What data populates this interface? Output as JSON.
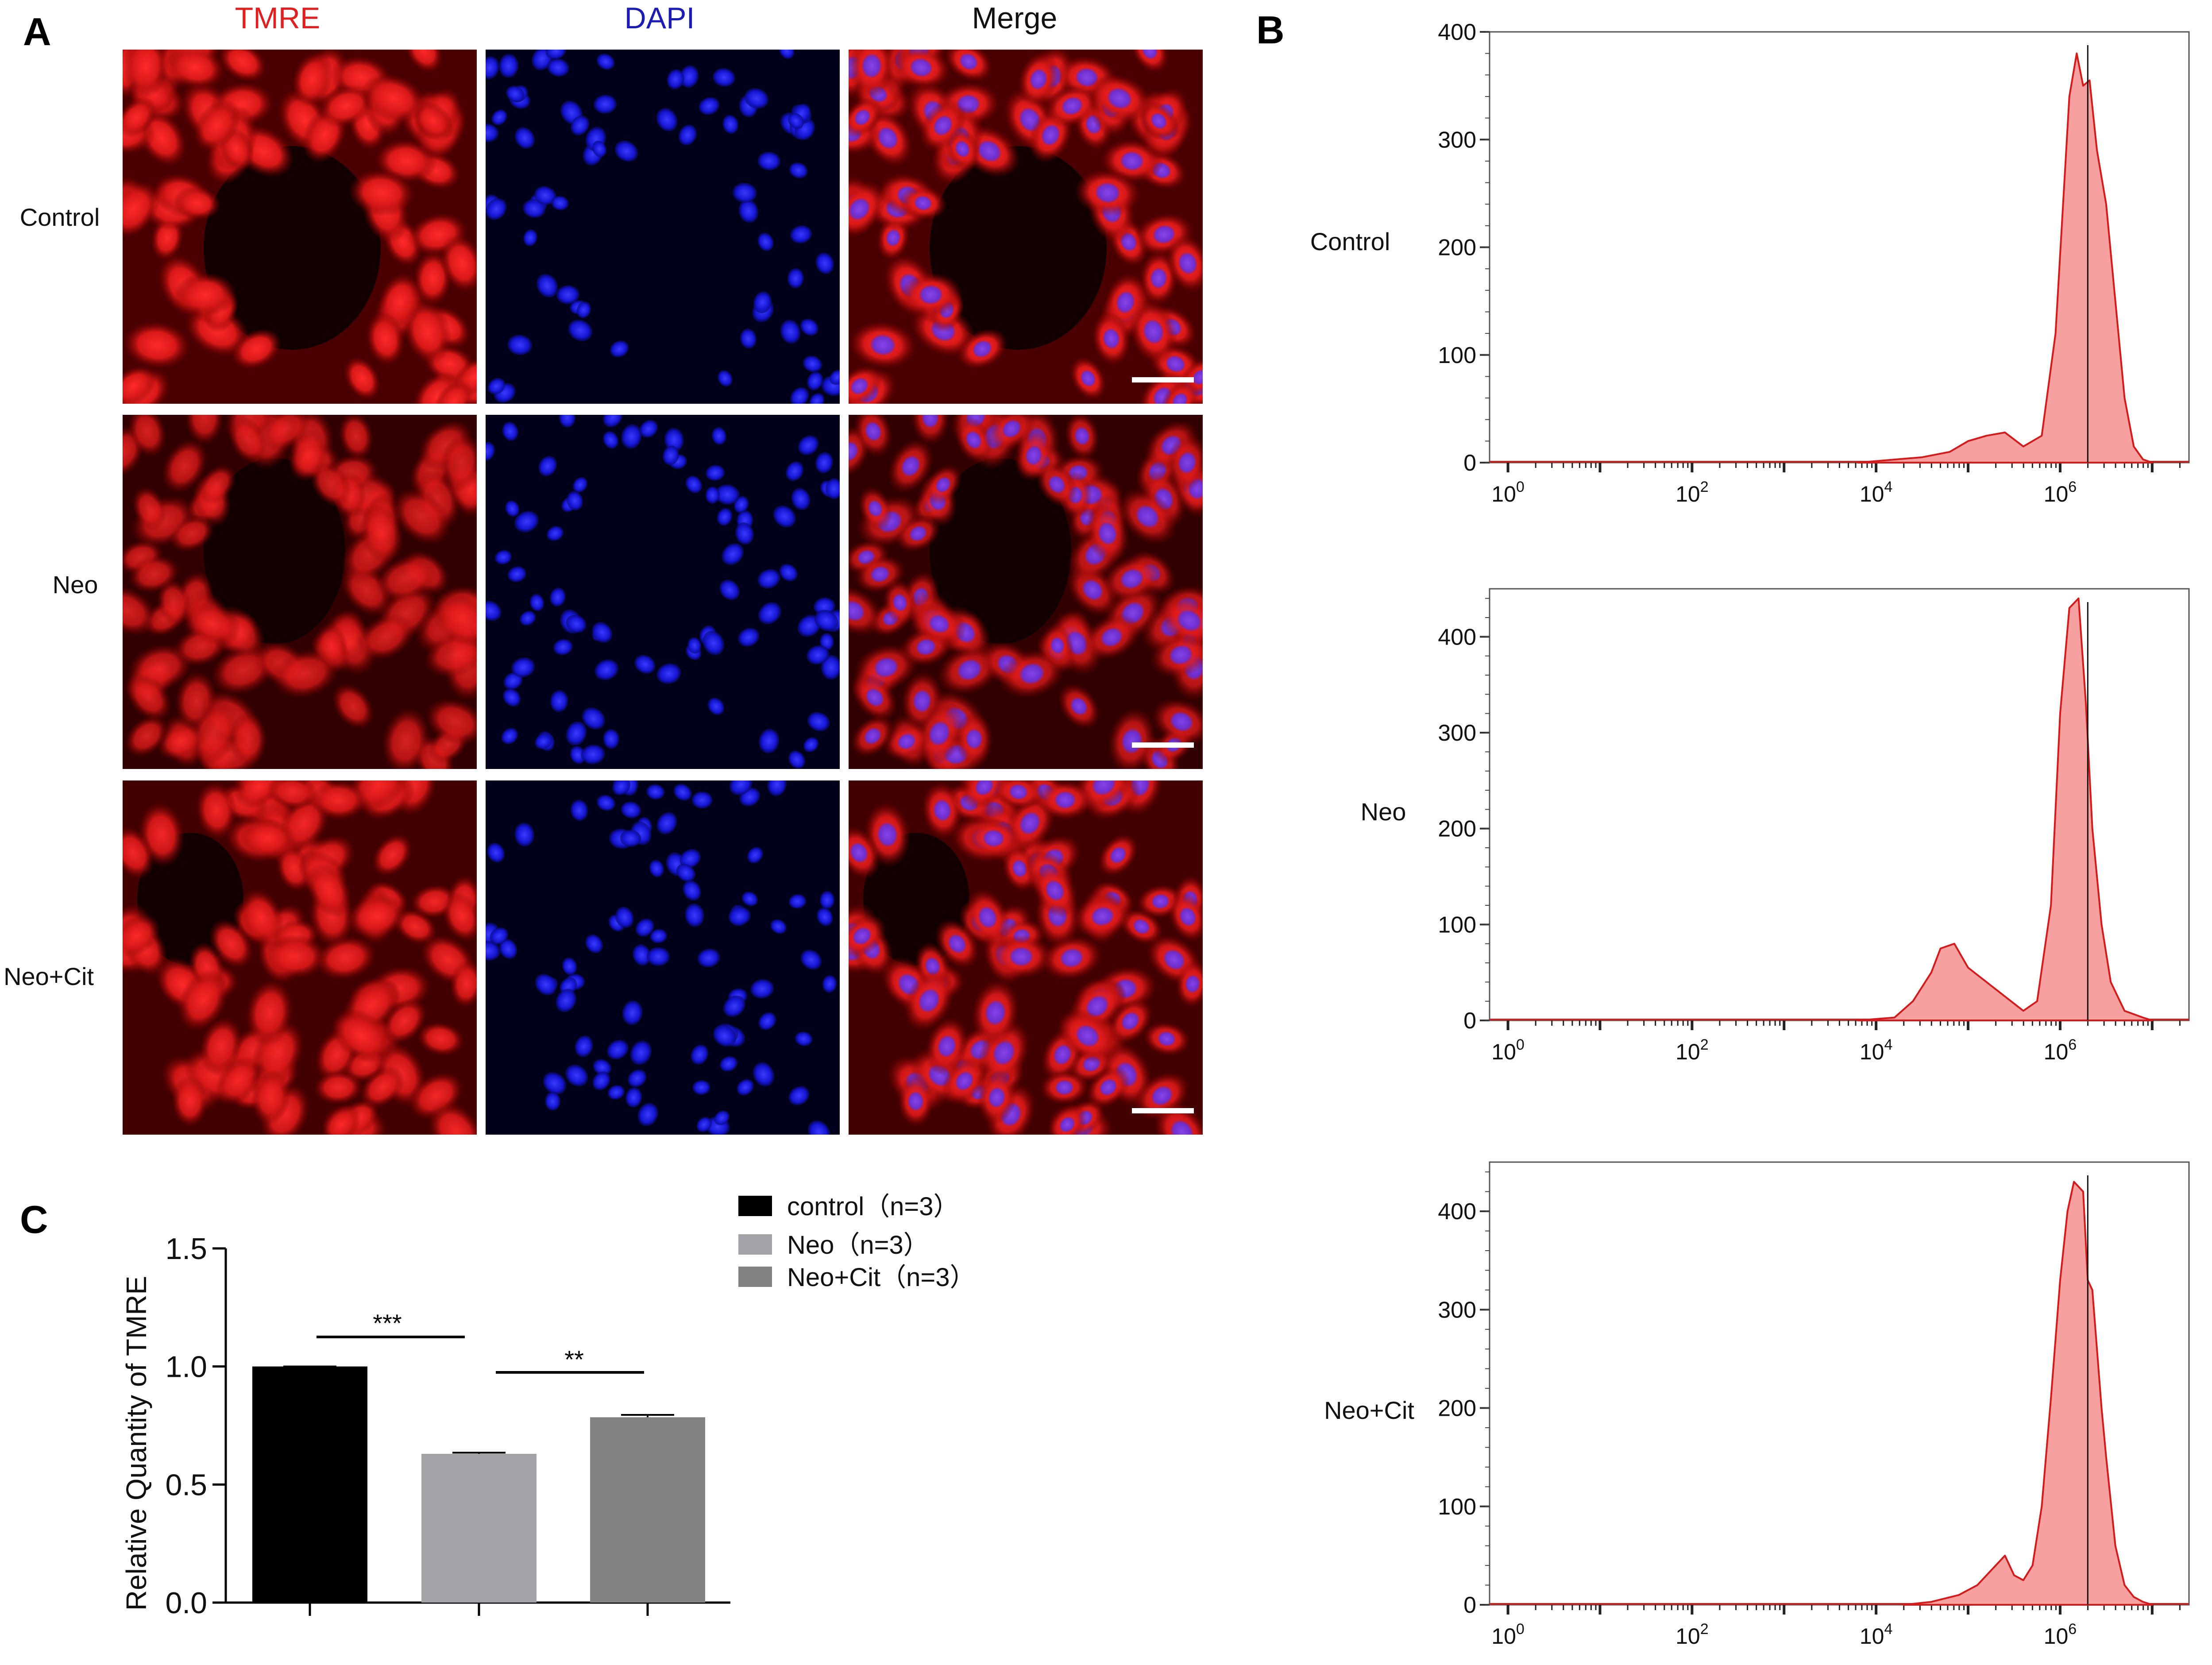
{
  "panel_a": {
    "letter": "A",
    "columns": [
      {
        "label": "TMRE",
        "color": "#e02020"
      },
      {
        "label": "DAPI",
        "color": "#1c1cb4"
      },
      {
        "label": "Merge",
        "color": "#111111"
      }
    ],
    "rows": [
      "Control",
      "Neo",
      "Neo+Cit"
    ],
    "tmre_intensity": [
      1.0,
      0.55,
      0.85
    ]
  },
  "panel_b": {
    "letter": "B",
    "row_labels": [
      "Control",
      "Neo",
      "Neo+Cit"
    ],
    "x_tick_labels": [
      {
        "base": "10",
        "exp": "0"
      },
      {
        "base": "10",
        "exp": "2"
      },
      {
        "base": "10",
        "exp": "4"
      },
      {
        "base": "10",
        "exp": "6"
      }
    ]
  },
  "panel_c": {
    "letter": "C",
    "significance": [
      "***",
      "**"
    ]
  },
  "chart_data": [
    {
      "type": "area",
      "name": "Control",
      "x_scale": "log",
      "x": [
        3.8,
        4.5,
        4.8,
        5.0,
        5.2,
        5.4,
        5.6,
        5.8,
        5.95,
        6.1,
        6.18,
        6.25,
        6.32,
        6.4,
        6.5,
        6.6,
        6.7,
        6.8,
        6.9,
        7.0
      ],
      "y": [
        0,
        5,
        10,
        20,
        25,
        28,
        15,
        25,
        120,
        340,
        380,
        350,
        355,
        290,
        240,
        150,
        60,
        15,
        3,
        0
      ],
      "xlim": [
        -0.2,
        7.4
      ],
      "ylim": [
        0,
        400
      ],
      "y_ticks": [
        0,
        100,
        200,
        300,
        400
      ],
      "marker_x": 6.3
    },
    {
      "type": "area",
      "name": "Neo",
      "x_scale": "log",
      "x": [
        3.8,
        4.2,
        4.4,
        4.6,
        4.7,
        4.85,
        5.0,
        5.2,
        5.4,
        5.6,
        5.75,
        5.9,
        6.0,
        6.1,
        6.2,
        6.28,
        6.35,
        6.45,
        6.55,
        6.7,
        6.9,
        7.0
      ],
      "y": [
        0,
        3,
        20,
        50,
        75,
        80,
        55,
        40,
        25,
        10,
        20,
        120,
        320,
        430,
        440,
        330,
        200,
        100,
        40,
        10,
        3,
        0
      ],
      "xlim": [
        -0.2,
        7.4
      ],
      "ylim": [
        0,
        450
      ],
      "y_ticks": [
        0,
        100,
        200,
        300,
        400
      ],
      "marker_x": 6.3
    },
    {
      "type": "area",
      "name": "Neo+Cit",
      "x_scale": "log",
      "x": [
        4.3,
        4.6,
        4.9,
        5.1,
        5.2,
        5.3,
        5.4,
        5.5,
        5.6,
        5.7,
        5.8,
        5.9,
        6.0,
        6.08,
        6.15,
        6.25,
        6.3,
        6.35,
        6.4,
        6.45,
        6.5,
        6.6,
        6.7,
        6.8,
        6.9,
        7.0
      ],
      "y": [
        0,
        3,
        10,
        20,
        30,
        40,
        50,
        30,
        25,
        40,
        100,
        210,
        330,
        400,
        430,
        420,
        330,
        320,
        260,
        200,
        150,
        60,
        20,
        8,
        3,
        0
      ],
      "xlim": [
        -0.2,
        7.4
      ],
      "ylim": [
        0,
        450
      ],
      "y_ticks": [
        0,
        100,
        200,
        300,
        400
      ],
      "marker_x": 6.3
    },
    {
      "type": "bar",
      "categories": [
        "control（n=3）",
        "Neo（n=3）",
        "Neo+Cit（n=3）"
      ],
      "values": [
        1.0,
        0.63,
        0.785
      ],
      "errors": [
        0.0,
        0.005,
        0.01
      ],
      "colors": [
        "#000000",
        "#a3a3a7",
        "#838383"
      ],
      "ylabel": "Relative Quantity of  TMRE",
      "ylim": [
        0,
        1.5
      ],
      "y_ticks": [
        "0.0",
        "0.5",
        "1.0",
        "1.5"
      ],
      "legend_position": "top-right",
      "grid": false
    }
  ]
}
